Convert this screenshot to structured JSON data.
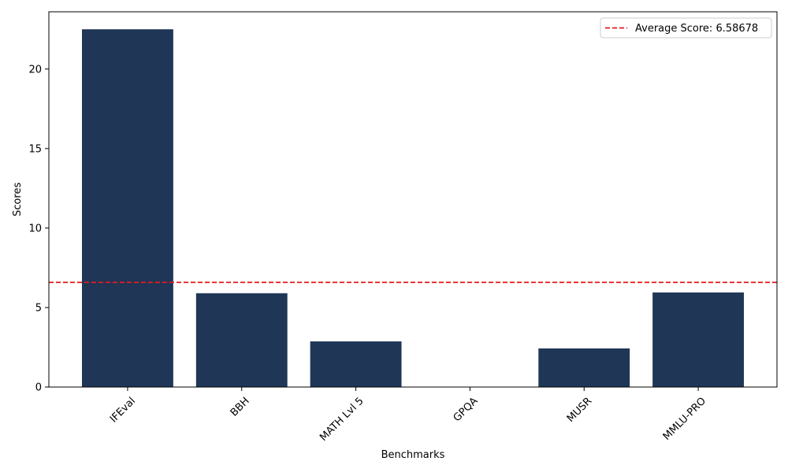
{
  "chart_data": {
    "type": "bar",
    "title": "",
    "xlabel": "Benchmarks",
    "ylabel": "Scores",
    "categories": [
      "IFEval",
      "BBH",
      "MATH Lvl 5",
      "GPQA",
      "MUSR",
      "MMLU-PRO"
    ],
    "values": [
      22.5,
      5.9,
      2.87,
      0.0,
      2.43,
      5.95
    ],
    "ylim": [
      0,
      23.6
    ],
    "yticks": [
      0,
      5,
      10,
      15,
      20
    ],
    "bar_color": "#1f3657",
    "reference_line": {
      "value": 6.58678,
      "style": "dashed",
      "color": "#e31a1c",
      "label": "Average Score: 6.58678"
    },
    "legend": {
      "position": "top-right"
    },
    "grid": false
  }
}
